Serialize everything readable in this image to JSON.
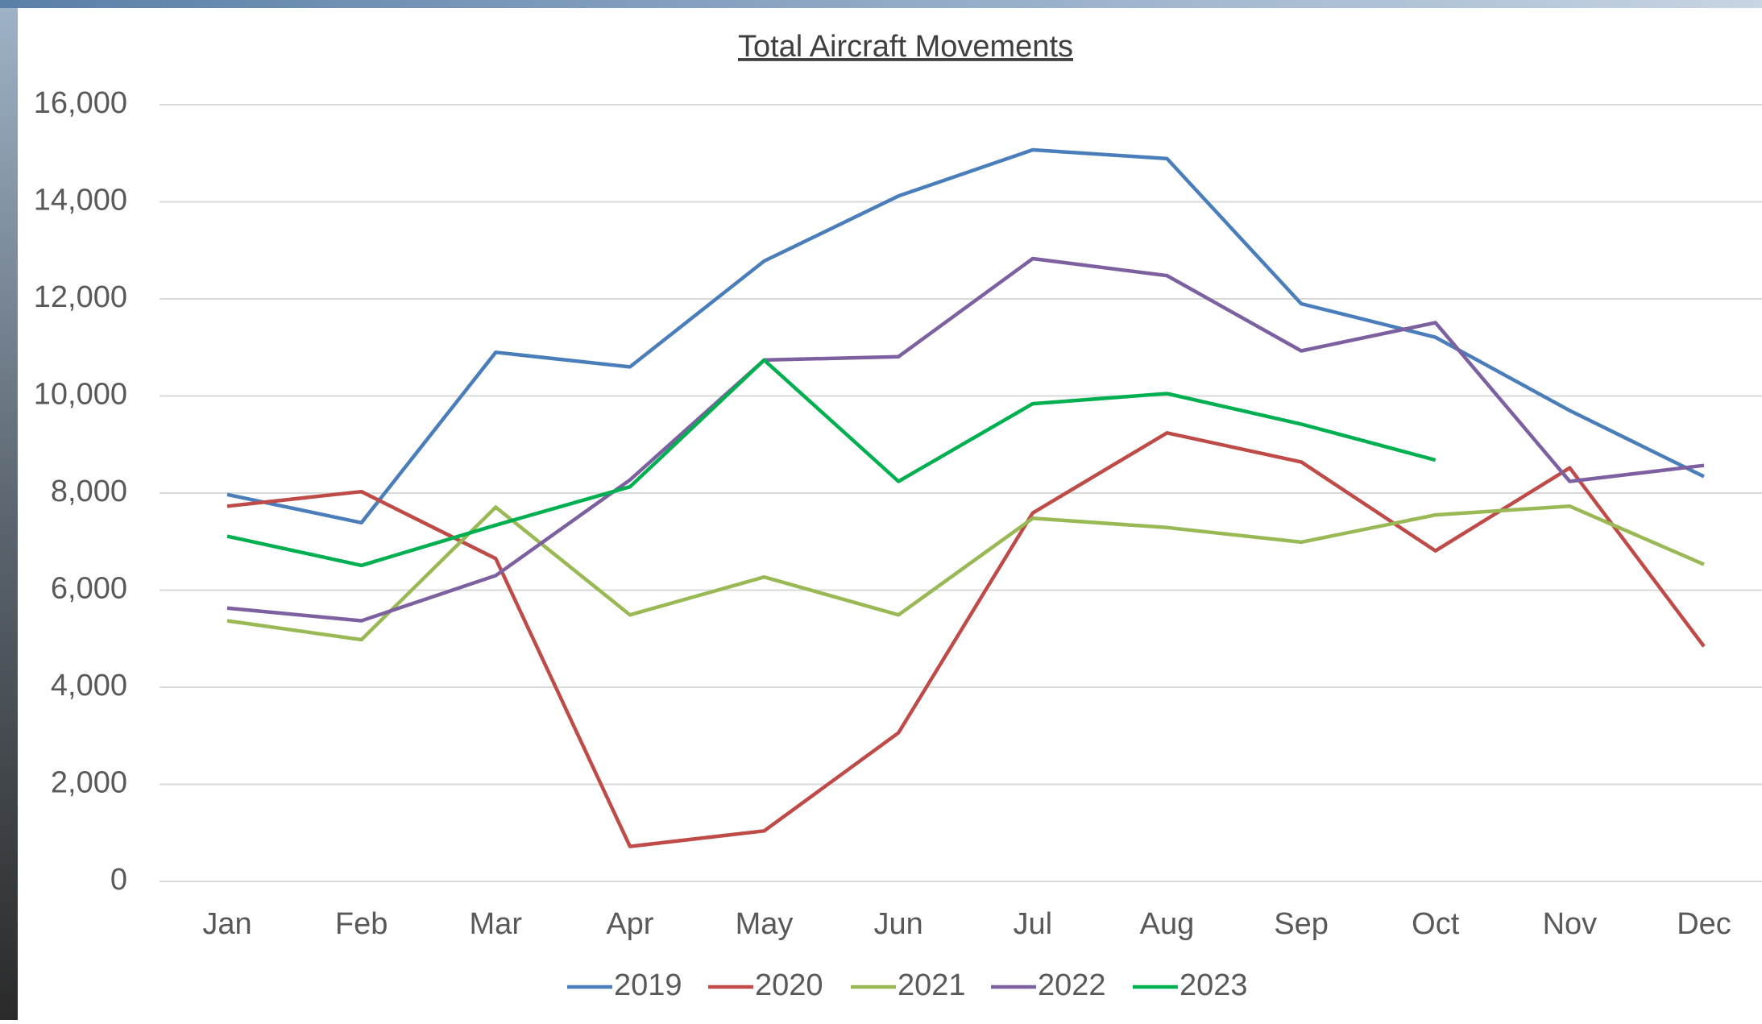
{
  "chart_data": {
    "type": "line",
    "title": "Total Aircraft Movements",
    "categories": [
      "Jan",
      "Feb",
      "Mar",
      "Apr",
      "May",
      "Jun",
      "Jul",
      "Aug",
      "Sep",
      "Oct",
      "Nov",
      "Dec"
    ],
    "series": [
      {
        "name": "2019",
        "color": "#4a7ebb",
        "values": [
          7970,
          7390,
          10900,
          10600,
          12780,
          14120,
          15070,
          14890,
          11900,
          11210,
          9700,
          8340
        ]
      },
      {
        "name": "2020",
        "color": "#be4b48",
        "values": [
          7730,
          8030,
          6650,
          720,
          1040,
          3060,
          7590,
          9240,
          8640,
          6810,
          8520,
          4840
        ]
      },
      {
        "name": "2021",
        "color": "#98b954",
        "values": [
          5370,
          4980,
          7710,
          5490,
          6270,
          5490,
          7480,
          7290,
          6990,
          7550,
          7730,
          6530
        ]
      },
      {
        "name": "2022",
        "color": "#7d60a0",
        "values": [
          5630,
          5370,
          6300,
          8270,
          10740,
          10810,
          12830,
          12480,
          10930,
          11510,
          8240,
          8570
        ]
      },
      {
        "name": "2023",
        "color": "#00b050",
        "values": [
          7110,
          6510,
          7340,
          8130,
          10740,
          8240,
          9840,
          10050,
          9420,
          8680,
          null,
          null
        ]
      }
    ],
    "ylim": [
      0,
      16000
    ],
    "yticks": [
      0,
      {
        "value": 2000,
        "label": "2,000"
      },
      {
        "value": 4000,
        "label": "4,000"
      },
      {
        "value": 6000,
        "label": "6,000"
      },
      {
        "value": 8000,
        "label": "8,000"
      },
      {
        "value": 10000,
        "label": "10,000"
      },
      {
        "value": 12000,
        "label": "12,000"
      },
      {
        "value": 14000,
        "label": "14,000"
      },
      {
        "value": 16000,
        "label": "16,000"
      }
    ],
    "grid": true,
    "legend": "bottom"
  }
}
